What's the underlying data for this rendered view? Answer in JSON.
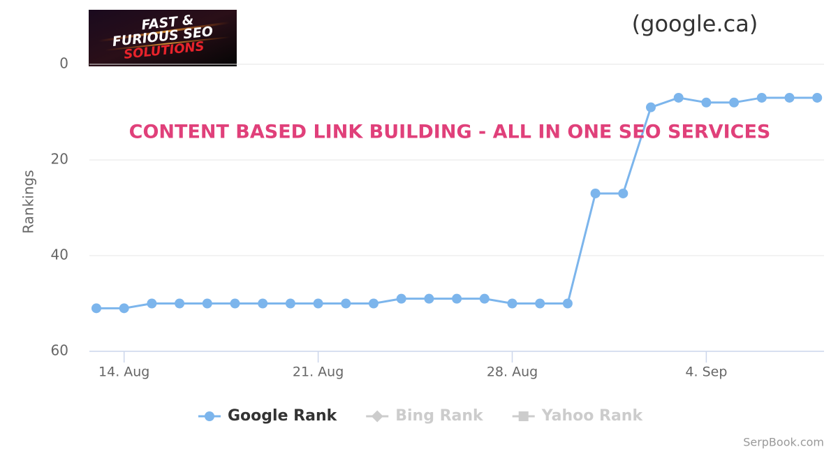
{
  "chart_data": {
    "type": "line",
    "logo": [
      "FAST &",
      "FURIOUS SEO",
      "SOLUTIONS"
    ],
    "subtitle": "(google.ca)",
    "annotation": "CONTENT BASED LINK BUILDING - ALL IN ONE SEO SERVICES",
    "y_label": "Rankings",
    "credits": "SerpBook.com",
    "categories": [
      null,
      "14. Aug",
      null,
      null,
      null,
      null,
      null,
      null,
      "21. Aug",
      null,
      null,
      null,
      null,
      null,
      null,
      "28. Aug",
      null,
      null,
      null,
      null,
      null,
      null,
      "4. Sep",
      null,
      null,
      null,
      null
    ],
    "series": [
      {
        "name": "Google Rank",
        "color": "#7cb5ec",
        "values": [
          51,
          51,
          50,
          50,
          50,
          50,
          50,
          50,
          50,
          50,
          50,
          49,
          49,
          49,
          49,
          50,
          50,
          50,
          27,
          27,
          9,
          7,
          8,
          8,
          7,
          7,
          7
        ]
      }
    ],
    "hidden_series": [
      {
        "name": "Bing Rank",
        "color": "#cccccc",
        "marker": "diamond"
      },
      {
        "name": "Yahoo Rank",
        "color": "#cccccc",
        "marker": "square"
      }
    ],
    "ylim": [
      0,
      60
    ],
    "yticks": [
      0,
      20,
      40,
      60
    ],
    "y_reversed": true,
    "grid": true
  }
}
